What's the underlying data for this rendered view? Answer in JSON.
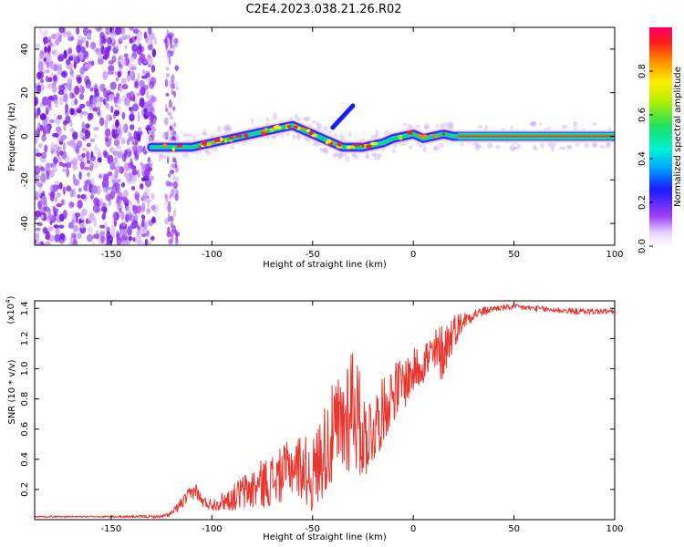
{
  "title": "C2E4.2023.038.21.26.R02",
  "chart_data": [
    {
      "type": "heatmap",
      "title": "C2E4.2023.038.21.26.R02",
      "xlabel": "Height of straight line (km)",
      "ylabel": "Frequency (Hz)",
      "xlim": [
        -188,
        100
      ],
      "ylim": [
        -50,
        50
      ],
      "xticks": [
        -150,
        -100,
        -50,
        0,
        50,
        100
      ],
      "yticks": [
        -40,
        -20,
        0,
        20,
        40
      ],
      "noise_region_x": [
        -188,
        -128
      ],
      "noise_stripe_x": [
        -123,
        -117
      ],
      "signal_start_x": -130,
      "ridge": {
        "x": [
          -130,
          -120,
          -110,
          -100,
          -90,
          -80,
          -70,
          -60,
          -55,
          -50,
          -45,
          -40,
          -35,
          -30,
          -25,
          -20,
          -15,
          -10,
          -5,
          0,
          5,
          10,
          15,
          20,
          40,
          60,
          80,
          100
        ],
        "frequency_hz": [
          -5,
          -5,
          -5,
          -3,
          -1,
          1,
          3,
          5,
          3,
          1,
          -1,
          -3,
          -5,
          -5,
          -5,
          -4,
          -3,
          -1,
          0,
          1,
          -1,
          0,
          1,
          0,
          0,
          0,
          0,
          0
        ]
      },
      "colorbar": {
        "label": "Normalized spectral amplitude",
        "ticks": [
          "0.0",
          "0.2",
          "0.4",
          "0.6",
          "0.8"
        ],
        "range": [
          0,
          1
        ]
      }
    },
    {
      "type": "line",
      "xlabel": "Height of straight line (km)",
      "ylabel": "SNR (10 * v/v)",
      "scale_label": "(x10",
      "scale_exponent": "4",
      "scale_close": ")",
      "xlim": [
        -188,
        100
      ],
      "ylim": [
        0,
        1.45
      ],
      "xticks": [
        -150,
        -100,
        -50,
        0,
        50,
        100
      ],
      "yticks": [
        "0.2",
        "0.4",
        "0.6",
        "0.8",
        "1.0",
        "1.2",
        "1.4"
      ],
      "color": "#e8352e",
      "envelope": {
        "x": [
          -188,
          -160,
          -125,
          -120,
          -112,
          -108,
          -105,
          -100,
          -95,
          -90,
          -85,
          -80,
          -75,
          -70,
          -65,
          -60,
          -55,
          -50,
          -45,
          -40,
          -35,
          -32,
          -30,
          -28,
          -25,
          -20,
          -15,
          -10,
          -5,
          0,
          5,
          10,
          15,
          20,
          25,
          30,
          40,
          50,
          60,
          70,
          80,
          90,
          100
        ],
        "mean": [
          0.02,
          0.02,
          0.02,
          0.04,
          0.15,
          0.2,
          0.12,
          0.1,
          0.12,
          0.14,
          0.18,
          0.2,
          0.24,
          0.26,
          0.3,
          0.36,
          0.35,
          0.28,
          0.45,
          0.55,
          0.62,
          0.75,
          0.82,
          0.7,
          0.55,
          0.6,
          0.72,
          0.85,
          0.9,
          0.98,
          1.05,
          1.08,
          1.12,
          1.25,
          1.32,
          1.36,
          1.4,
          1.41,
          1.4,
          1.39,
          1.38,
          1.38,
          1.38
        ],
        "noise": [
          0.005,
          0.005,
          0.01,
          0.02,
          0.05,
          0.05,
          0.04,
          0.04,
          0.06,
          0.08,
          0.12,
          0.14,
          0.16,
          0.18,
          0.18,
          0.2,
          0.22,
          0.25,
          0.3,
          0.35,
          0.4,
          0.45,
          0.45,
          0.4,
          0.3,
          0.25,
          0.22,
          0.2,
          0.18,
          0.15,
          0.15,
          0.18,
          0.2,
          0.12,
          0.06,
          0.04,
          0.02,
          0.02,
          0.02,
          0.02,
          0.02,
          0.02,
          0.02
        ]
      }
    }
  ]
}
